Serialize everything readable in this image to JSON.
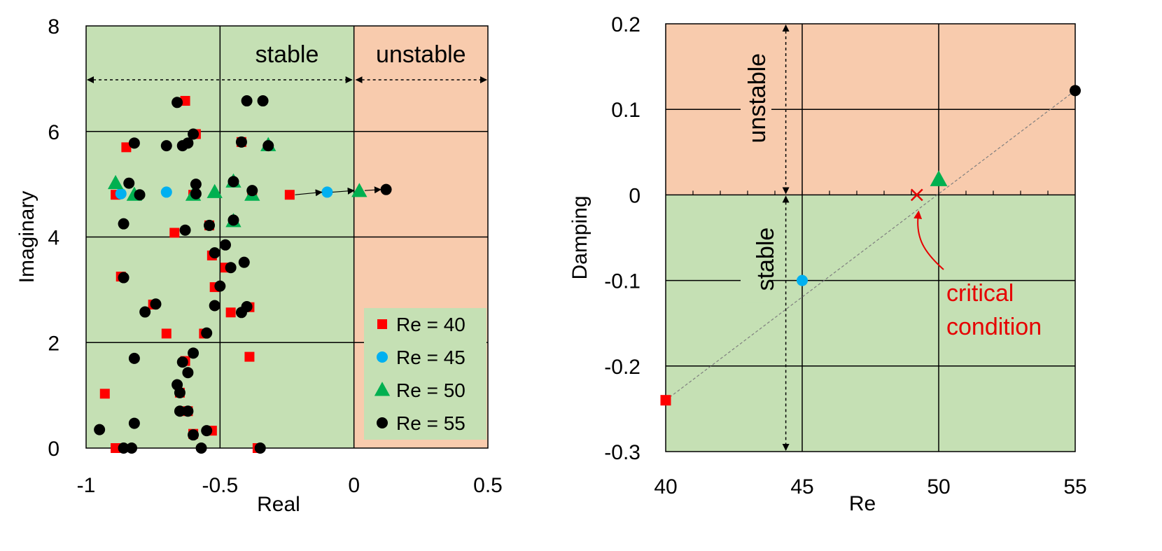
{
  "chart_data": [
    {
      "type": "scatter",
      "xlabel": "Real",
      "ylabel": "Imaginary",
      "xlim": [
        -1,
        0.5
      ],
      "ylim": [
        0,
        8
      ],
      "xticks": [
        -1,
        -0.5,
        0,
        0.5
      ],
      "yticks": [
        0,
        2,
        4,
        6,
        8
      ],
      "xtick_labels": [
        "-1",
        "-0.5",
        "0",
        "0.5"
      ],
      "ytick_labels": [
        "0",
        "2",
        "4",
        "6",
        "8"
      ],
      "grid": true,
      "legend_position": "bottom-right",
      "regions": {
        "stable_label": "stable",
        "unstable_label": "unstable",
        "boundary_x": 0,
        "stable_color": "#c5e0b4",
        "unstable_color": "#f8cbad"
      },
      "series": [
        {
          "name": "Re = 40",
          "marker": "square",
          "color": "#ff0000",
          "points": [
            [
              -0.63,
              6.58
            ],
            [
              -0.85,
              5.7
            ],
            [
              -0.59,
              5.95
            ],
            [
              -0.42,
              5.8
            ],
            [
              -0.89,
              4.8
            ],
            [
              -0.6,
              4.8
            ],
            [
              -0.38,
              4.83
            ],
            [
              -0.24,
              4.8
            ],
            [
              -0.67,
              4.08
            ],
            [
              -0.54,
              4.22
            ],
            [
              -0.53,
              3.65
            ],
            [
              -0.48,
              3.42
            ],
            [
              -0.87,
              3.25
            ],
            [
              -0.52,
              3.05
            ],
            [
              -0.75,
              2.72
            ],
            [
              -0.46,
              2.57
            ],
            [
              -0.39,
              2.67
            ],
            [
              -0.7,
              2.17
            ],
            [
              -0.56,
              2.17
            ],
            [
              -0.39,
              1.73
            ],
            [
              -0.63,
              1.65
            ],
            [
              -0.65,
              1.05
            ],
            [
              -0.93,
              1.03
            ],
            [
              -0.62,
              0.7
            ],
            [
              -0.6,
              0.27
            ],
            [
              -0.53,
              0.33
            ],
            [
              -0.89,
              0.0
            ],
            [
              -0.36,
              0.0
            ]
          ]
        },
        {
          "name": "Re = 45",
          "marker": "circle",
          "color": "#00b0f0",
          "points": [
            [
              -0.87,
              4.82
            ],
            [
              -0.7,
              4.85
            ],
            [
              -0.1,
              4.85
            ]
          ]
        },
        {
          "name": "Re = 50",
          "marker": "triangle",
          "color": "#00b050",
          "points": [
            [
              -0.32,
              5.74
            ],
            [
              -0.89,
              5.02
            ],
            [
              -0.82,
              4.8
            ],
            [
              -0.6,
              4.8
            ],
            [
              -0.52,
              4.85
            ],
            [
              -0.45,
              5.05
            ],
            [
              -0.38,
              4.8
            ],
            [
              -0.45,
              4.3
            ],
            [
              0.02,
              4.87
            ]
          ]
        },
        {
          "name": "Re = 55",
          "marker": "circle",
          "color": "#000000",
          "points": [
            [
              -0.66,
              6.55
            ],
            [
              -0.4,
              6.58
            ],
            [
              -0.34,
              6.58
            ],
            [
              -0.6,
              5.95
            ],
            [
              -0.82,
              5.78
            ],
            [
              -0.7,
              5.73
            ],
            [
              -0.64,
              5.73
            ],
            [
              -0.62,
              5.78
            ],
            [
              -0.42,
              5.8
            ],
            [
              -0.32,
              5.73
            ],
            [
              -0.45,
              5.05
            ],
            [
              -0.59,
              5.0
            ],
            [
              -0.84,
              5.02
            ],
            [
              -0.59,
              4.82
            ],
            [
              -0.8,
              4.8
            ],
            [
              -0.38,
              4.88
            ],
            [
              0.12,
              4.9
            ],
            [
              -0.86,
              4.25
            ],
            [
              -0.63,
              4.13
            ],
            [
              -0.54,
              4.22
            ],
            [
              -0.45,
              4.32
            ],
            [
              -0.48,
              3.85
            ],
            [
              -0.52,
              3.7
            ],
            [
              -0.46,
              3.42
            ],
            [
              -0.41,
              3.52
            ],
            [
              -0.86,
              3.23
            ],
            [
              -0.5,
              3.07
            ],
            [
              -0.52,
              2.7
            ],
            [
              -0.42,
              2.57
            ],
            [
              -0.4,
              2.68
            ],
            [
              -0.78,
              2.58
            ],
            [
              -0.74,
              2.73
            ],
            [
              -0.55,
              2.18
            ],
            [
              -0.6,
              1.8
            ],
            [
              -0.82,
              1.7
            ],
            [
              -0.64,
              1.63
            ],
            [
              -0.62,
              1.43
            ],
            [
              -0.66,
              1.2
            ],
            [
              -0.65,
              1.05
            ],
            [
              -0.62,
              0.7
            ],
            [
              -0.65,
              0.7
            ],
            [
              -0.95,
              0.35
            ],
            [
              -0.82,
              0.47
            ],
            [
              -0.55,
              0.33
            ],
            [
              -0.6,
              0.25
            ],
            [
              -0.86,
              0.0
            ],
            [
              -0.83,
              0.0
            ],
            [
              -0.57,
              0.0
            ],
            [
              -0.35,
              0.0
            ]
          ]
        }
      ],
      "arrows": [
        {
          "from": [
            -0.22,
            4.8
          ],
          "to": [
            -0.12,
            4.85
          ]
        },
        {
          "from": [
            -0.08,
            4.85
          ],
          "to": [
            0.0,
            4.88
          ]
        },
        {
          "from": [
            0.04,
            4.88
          ],
          "to": [
            0.1,
            4.9
          ]
        }
      ]
    },
    {
      "type": "scatter",
      "xlabel": "Re",
      "ylabel": "Damping",
      "xlim": [
        40,
        55
      ],
      "ylim": [
        -0.3,
        0.2
      ],
      "xticks": [
        40,
        45,
        50,
        55
      ],
      "yticks": [
        -0.3,
        -0.2,
        -0.1,
        0,
        0.1,
        0.2
      ],
      "xtick_labels": [
        "40",
        "45",
        "50",
        "55"
      ],
      "ytick_labels": [
        "-0.3",
        "-0.2",
        "-0.1",
        "0",
        "0.1",
        "0.2"
      ],
      "grid": true,
      "regions": {
        "stable_label": "stable",
        "unstable_label": "unstable",
        "boundary_y": 0,
        "stable_color": "#c5e0b4",
        "unstable_color": "#f8cbad"
      },
      "points": [
        {
          "x": 40,
          "y": -0.24,
          "marker": "square",
          "color": "#ff0000"
        },
        {
          "x": 45,
          "y": -0.1,
          "marker": "circle",
          "color": "#00b0f0"
        },
        {
          "x": 50,
          "y": 0.018,
          "marker": "triangle",
          "color": "#00b050"
        },
        {
          "x": 55,
          "y": 0.122,
          "marker": "circle",
          "color": "#000000"
        }
      ],
      "trendline": {
        "from": [
          40,
          -0.24
        ],
        "to": [
          55,
          0.122
        ]
      },
      "critical": {
        "x": 49.2,
        "y": 0,
        "marker": "x",
        "color": "#e60000",
        "label_line1": "critical",
        "label_line2": "condition"
      }
    }
  ]
}
